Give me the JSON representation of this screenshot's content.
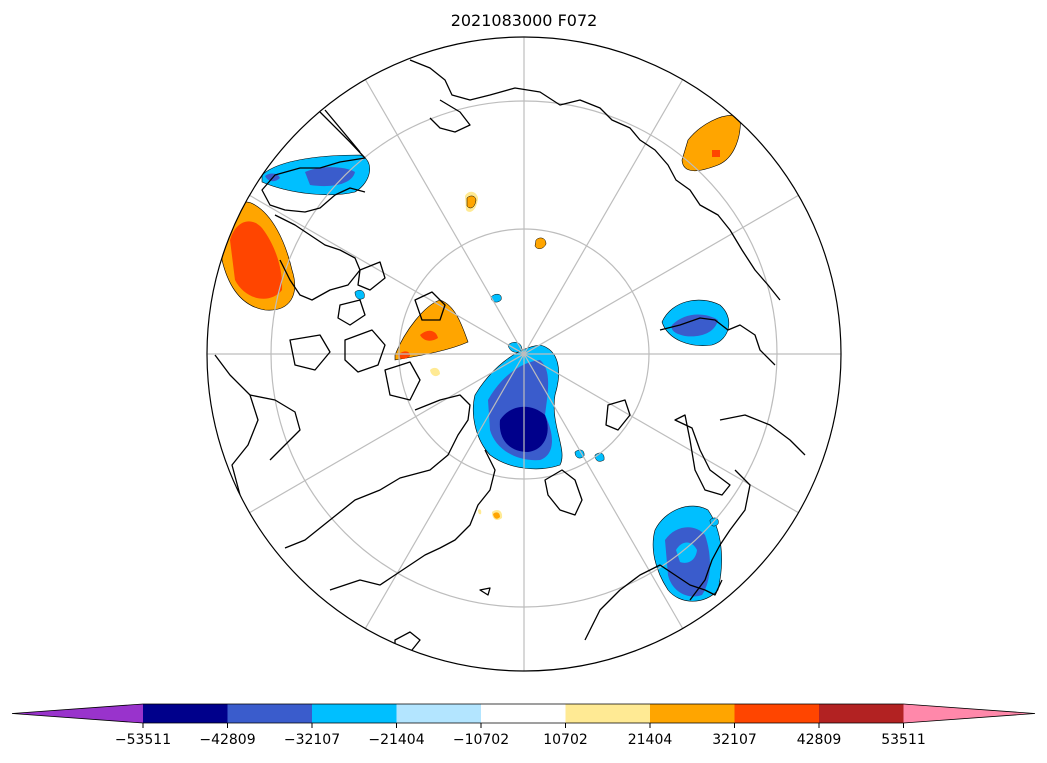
{
  "title": "2021083000 F072",
  "colorbar": {
    "colors": [
      "#9933cc",
      "#00008b",
      "#3a5ccc",
      "#00bfff",
      "#b3e5ff",
      "#ffffff",
      "#ffea94",
      "#ffa500",
      "#ff4500",
      "#b22222",
      "#ff88aa"
    ],
    "ticks": [
      "−53511",
      "−42809",
      "−32107",
      "−21404",
      "−10702",
      "10702",
      "21404",
      "32107",
      "42809",
      "53511"
    ]
  },
  "colors": {
    "dark_navy": "#00008b",
    "royal_blue": "#3a5ccc",
    "sky_blue": "#00bfff",
    "pale_blue": "#b3e5ff",
    "pale_yellow": "#ffea94",
    "orange": "#ffa500",
    "red_orange": "#ff4500",
    "graticule": "#bdbdbd",
    "coast": "#000000"
  },
  "map": {
    "projection": "north-polar-stereographic",
    "graticule": "on",
    "features": [
      {
        "name": "blue-anomaly-pole",
        "level": "-53511"
      },
      {
        "name": "blue-anomaly-scandinavia",
        "level": "-42809"
      },
      {
        "name": "blue-anomaly-west-siberia",
        "level": "-32107"
      },
      {
        "name": "blue-anomaly-alaska",
        "level": "-42809"
      },
      {
        "name": "orange-anomaly-canada",
        "level": "42809"
      },
      {
        "name": "orange-anomaly-greenland",
        "level": "32107"
      },
      {
        "name": "orange-anomaly-east-siberia",
        "level": "32107"
      }
    ]
  }
}
